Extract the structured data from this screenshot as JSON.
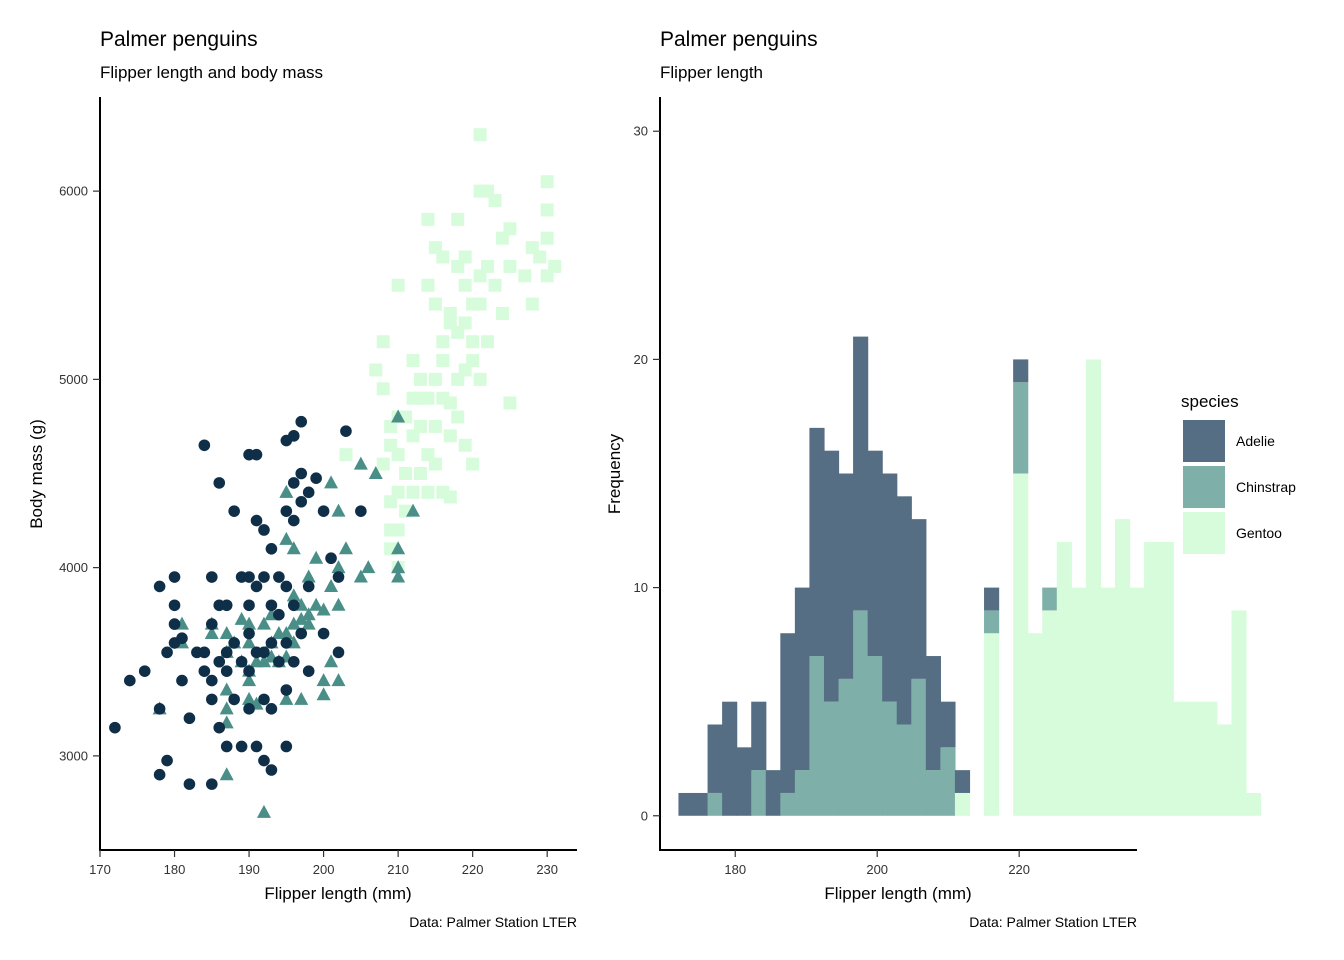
{
  "chart_data": [
    {
      "type": "scatter",
      "title": "Palmer penguins",
      "subtitle": "Flipper length and body mass",
      "xlabel": "Flipper length (mm)",
      "ylabel": "Body mass (g)",
      "caption": "Data: Palmer Station LTER",
      "xlim": [
        170,
        234
      ],
      "ylim": [
        2500,
        6500
      ],
      "xticks": [
        "170",
        "180",
        "190",
        "200",
        "210",
        "220",
        "230"
      ],
      "yticks": [
        "3000",
        "4000",
        "5000",
        "6000"
      ],
      "series": [
        {
          "color": "#0f2e48",
          "marker": "circle",
          "points": [
            [
              172,
              3150
            ],
            [
              174,
              3400
            ],
            [
              176,
              3450
            ],
            [
              178,
              3900
            ],
            [
              178,
              2900
            ],
            [
              178,
              3250
            ],
            [
              179,
              2975
            ],
            [
              179,
              3550
            ],
            [
              180,
              3950
            ],
            [
              180,
              3800
            ],
            [
              180,
              3600
            ],
            [
              180,
              3700
            ],
            [
              181,
              3625
            ],
            [
              181,
              3400
            ],
            [
              182,
              3200
            ],
            [
              182,
              2850
            ],
            [
              183,
              3550
            ],
            [
              184,
              3550
            ],
            [
              184,
              3450
            ],
            [
              184,
              4650
            ],
            [
              185,
              3950
            ],
            [
              185,
              3700
            ],
            [
              185,
              3400
            ],
            [
              185,
              3300
            ],
            [
              185,
              2850
            ],
            [
              186,
              4450
            ],
            [
              186,
              3800
            ],
            [
              186,
              3500
            ],
            [
              186,
              3150
            ],
            [
              187,
              3800
            ],
            [
              187,
              3550
            ],
            [
              187,
              3450
            ],
            [
              187,
              3050
            ],
            [
              188,
              4300
            ],
            [
              188,
              3600
            ],
            [
              188,
              3300
            ],
            [
              189,
              3950
            ],
            [
              189,
              3500
            ],
            [
              189,
              3050
            ],
            [
              190,
              4600
            ],
            [
              190,
              3950
            ],
            [
              190,
              3800
            ],
            [
              190,
              3650
            ],
            [
              190,
              3450
            ],
            [
              190,
              3250
            ],
            [
              191,
              4250
            ],
            [
              191,
              4600
            ],
            [
              191,
              3900
            ],
            [
              191,
              3550
            ],
            [
              191,
              3050
            ],
            [
              192,
              4200
            ],
            [
              192,
              3950
            ],
            [
              192,
              3550
            ],
            [
              192,
              3300
            ],
            [
              192,
              2975
            ],
            [
              193,
              4100
            ],
            [
              193,
              3800
            ],
            [
              193,
              3600
            ],
            [
              193,
              3250
            ],
            [
              193,
              2925
            ],
            [
              194,
              3950
            ],
            [
              194,
              3750
            ],
            [
              194,
              3500
            ],
            [
              195,
              4300
            ],
            [
              195,
              4675
            ],
            [
              195,
              3900
            ],
            [
              195,
              3600
            ],
            [
              195,
              3350
            ],
            [
              195,
              3050
            ],
            [
              196,
              4450
            ],
            [
              196,
              4250
            ],
            [
              196,
              3800
            ],
            [
              196,
              3500
            ],
            [
              196,
              4700
            ],
            [
              197,
              4500
            ],
            [
              197,
              4350
            ],
            [
              197,
              4775
            ],
            [
              197,
              3650
            ],
            [
              198,
              4400
            ],
            [
              198,
              3900
            ],
            [
              198,
              3450
            ],
            [
              199,
              4475
            ],
            [
              200,
              4300
            ],
            [
              200,
              3650
            ],
            [
              201,
              4050
            ],
            [
              202,
              3950
            ],
            [
              202,
              3550
            ],
            [
              203,
              4725
            ],
            [
              205,
              4300
            ]
          ]
        },
        {
          "color": "#4a8e88",
          "marker": "triangle",
          "points": [
            [
              178,
              3250
            ],
            [
              181,
              3700
            ],
            [
              181,
              3600
            ],
            [
              185,
              3700
            ],
            [
              185,
              3650
            ],
            [
              187,
              3650
            ],
            [
              187,
              3550
            ],
            [
              187,
              3350
            ],
            [
              187,
              3250
            ],
            [
              187,
              3175
            ],
            [
              187,
              2900
            ],
            [
              188,
              3600
            ],
            [
              189,
              3500
            ],
            [
              189,
              3725
            ],
            [
              190,
              3450
            ],
            [
              190,
              3600
            ],
            [
              190,
              3400
            ],
            [
              190,
              3300
            ],
            [
              190,
              3700
            ],
            [
              191,
              3500
            ],
            [
              191,
              3275
            ],
            [
              192,
              3500
            ],
            [
              192,
              3700
            ],
            [
              192,
              2700
            ],
            [
              193,
              3750
            ],
            [
              193,
              3600
            ],
            [
              193,
              3525
            ],
            [
              194,
              3650
            ],
            [
              194,
              3500
            ],
            [
              195,
              3650
            ],
            [
              195,
              3525
            ],
            [
              195,
              3300
            ],
            [
              195,
              4400
            ],
            [
              195,
              4150
            ],
            [
              196,
              3700
            ],
            [
              196,
              3850
            ],
            [
              196,
              3600
            ],
            [
              196,
              4100
            ],
            [
              197,
              3800
            ],
            [
              197,
              3725
            ],
            [
              197,
              3300
            ],
            [
              198,
              3750
            ],
            [
              198,
              3700
            ],
            [
              198,
              3950
            ],
            [
              199,
              3800
            ],
            [
              199,
              4050
            ],
            [
              200,
              3400
            ],
            [
              200,
              3325
            ],
            [
              200,
              3775
            ],
            [
              201,
              3500
            ],
            [
              201,
              3900
            ],
            [
              201,
              4450
            ],
            [
              202,
              4300
            ],
            [
              202,
              4000
            ],
            [
              202,
              3800
            ],
            [
              202,
              3400
            ],
            [
              203,
              4100
            ],
            [
              205,
              3950
            ],
            [
              205,
              4550
            ],
            [
              206,
              4000
            ],
            [
              210,
              4800
            ],
            [
              210,
              4100
            ],
            [
              210,
              3950
            ],
            [
              210,
              4000
            ],
            [
              212,
              4300
            ],
            [
              207,
              4500
            ]
          ]
        },
        {
          "color": "#d7fcdb",
          "marker": "square",
          "points": [
            [
              203,
              4600
            ],
            [
              207,
              5050
            ],
            [
              208,
              4950
            ],
            [
              208,
              5200
            ],
            [
              208,
              4550
            ],
            [
              209,
              4350
            ],
            [
              209,
              4650
            ],
            [
              209,
              4750
            ],
            [
              209,
              4200
            ],
            [
              209,
              4100
            ],
            [
              210,
              5500
            ],
            [
              210,
              4800
            ],
            [
              210,
              4600
            ],
            [
              210,
              4400
            ],
            [
              210,
              4200
            ],
            [
              210,
              4000
            ],
            [
              211,
              4800
            ],
            [
              211,
              4500
            ],
            [
              211,
              4300
            ],
            [
              212,
              5100
            ],
            [
              212,
              4900
            ],
            [
              212,
              4700
            ],
            [
              212,
              4400
            ],
            [
              213,
              5000
            ],
            [
              213,
              4750
            ],
            [
              213,
              4500
            ],
            [
              213,
              4900
            ],
            [
              214,
              5850
            ],
            [
              214,
              5500
            ],
            [
              214,
              4900
            ],
            [
              214,
              4600
            ],
            [
              214,
              4400
            ],
            [
              215,
              5400
            ],
            [
              215,
              5000
            ],
            [
              215,
              4750
            ],
            [
              215,
              5700
            ],
            [
              215,
              4550
            ],
            [
              216,
              5650
            ],
            [
              216,
              5200
            ],
            [
              216,
              4900
            ],
            [
              216,
              5100
            ],
            [
              216,
              4400
            ],
            [
              217,
              5350
            ],
            [
              217,
              5300
            ],
            [
              217,
              4875
            ],
            [
              217,
              4700
            ],
            [
              217,
              4375
            ],
            [
              218,
              5600
            ],
            [
              218,
              5250
            ],
            [
              218,
              5000
            ],
            [
              218,
              4800
            ],
            [
              218,
              5850
            ],
            [
              219,
              5650
            ],
            [
              219,
              5500
            ],
            [
              219,
              5300
            ],
            [
              219,
              5050
            ],
            [
              219,
              4650
            ],
            [
              220,
              5400
            ],
            [
              220,
              5100
            ],
            [
              220,
              5200
            ],
            [
              220,
              4550
            ],
            [
              221,
              6000
            ],
            [
              221,
              5400
            ],
            [
              221,
              5550
            ],
            [
              221,
              5000
            ],
            [
              221,
              6300
            ],
            [
              222,
              6000
            ],
            [
              222,
              5600
            ],
            [
              222,
              5200
            ],
            [
              223,
              5500
            ],
            [
              223,
              5950
            ],
            [
              224,
              5750
            ],
            [
              224,
              5350
            ],
            [
              225,
              5800
            ],
            [
              225,
              5600
            ],
            [
              225,
              4875
            ],
            [
              227,
              5550
            ],
            [
              228,
              5700
            ],
            [
              228,
              5400
            ],
            [
              229,
              5650
            ],
            [
              230,
              6050
            ],
            [
              230,
              5750
            ],
            [
              230,
              5550
            ],
            [
              230,
              5900
            ],
            [
              231,
              5600
            ]
          ]
        }
      ]
    },
    {
      "type": "bar",
      "title": "Palmer penguins",
      "subtitle": "Flipper length",
      "xlabel": "Flipper length (mm)",
      "ylabel": "Frequency",
      "caption": "Data: Palmer Station LTER",
      "xlim": [
        169.4,
        236.6
      ],
      "ylim": [
        -1.5,
        31.5
      ],
      "xticks": [
        "180",
        "200",
        "220"
      ],
      "yticks": [
        "0",
        "10",
        "20",
        "30"
      ],
      "legend_title": "species",
      "legend_position": "right",
      "bin_start": 172,
      "bin_width": 2.05,
      "series": [
        {
          "name": "Adelie",
          "color": "#566e83",
          "values": [
            1,
            1,
            3,
            5,
            3,
            3,
            2,
            7,
            8,
            10,
            11,
            9,
            12,
            9,
            10,
            10,
            7,
            5,
            2,
            1,
            0,
            1,
            0,
            1,
            0,
            0,
            0,
            0,
            0,
            0,
            0,
            0,
            0,
            0,
            0,
            0,
            0,
            0,
            0,
            0,
            0
          ]
        },
        {
          "name": "Chinstrap",
          "color": "#7eafa9",
          "values": [
            0,
            0,
            1,
            0,
            0,
            2,
            0,
            1,
            2,
            7,
            5,
            6,
            9,
            7,
            5,
            4,
            6,
            2,
            3,
            0,
            0,
            1,
            0,
            4,
            0,
            1,
            0,
            0,
            0,
            0,
            0,
            0,
            0,
            0,
            0,
            0,
            0,
            0,
            0,
            0,
            0
          ]
        },
        {
          "name": "Gentoo",
          "color": "#d7fcdb",
          "values": [
            0,
            0,
            0,
            0,
            0,
            0,
            0,
            0,
            0,
            0,
            0,
            0,
            0,
            0,
            0,
            0,
            0,
            0,
            0,
            1,
            0,
            8,
            0,
            15,
            8,
            9,
            12,
            10,
            20,
            10,
            13,
            10,
            12,
            12,
            5,
            5,
            5,
            4,
            9,
            1,
            0
          ]
        }
      ]
    }
  ]
}
